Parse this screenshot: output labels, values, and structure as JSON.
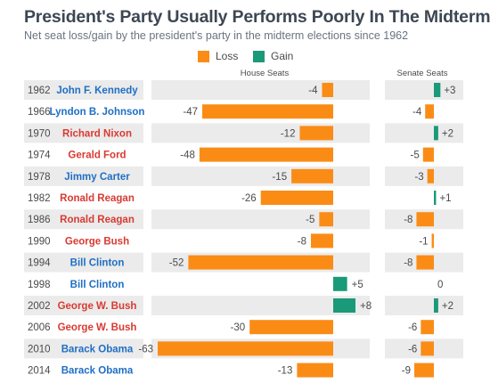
{
  "header": {
    "title": "President's Party Usually Performs Poorly In The Midterms",
    "subtitle": "Net seat loss/gain by the president's party in the midterm elections since 1962"
  },
  "legend": {
    "loss_label": "Loss",
    "gain_label": "Gain"
  },
  "colors": {
    "loss": "#fa8c16",
    "gain": "#1a9a78",
    "democrat": "#1f6fc4",
    "republican": "#d93a32",
    "row_alt": "#ebebeb"
  },
  "chart_data": {
    "type": "bar",
    "house_label": "House Seats",
    "senate_label": "Senate Seats",
    "house_range": [
      -65,
      10
    ],
    "senate_range": [
      -10,
      5
    ],
    "rows": [
      {
        "year": "1962",
        "president": "John F. Kennedy",
        "party": "democrat",
        "house": -4,
        "senate": 3,
        "house_label": "-4",
        "senate_label": "+3"
      },
      {
        "year": "1966",
        "president": "Lyndon B. Johnson",
        "party": "democrat",
        "house": -47,
        "senate": -4,
        "house_label": "-47",
        "senate_label": "-4"
      },
      {
        "year": "1970",
        "president": "Richard Nixon",
        "party": "republican",
        "house": -12,
        "senate": 2,
        "house_label": "-12",
        "senate_label": "+2"
      },
      {
        "year": "1974",
        "president": "Gerald Ford",
        "party": "republican",
        "house": -48,
        "senate": -5,
        "house_label": "-48",
        "senate_label": "-5"
      },
      {
        "year": "1978",
        "president": "Jimmy Carter",
        "party": "democrat",
        "house": -15,
        "senate": -3,
        "house_label": "-15",
        "senate_label": "-3"
      },
      {
        "year": "1982",
        "president": "Ronald Reagan",
        "party": "republican",
        "house": -26,
        "senate": 1,
        "house_label": "-26",
        "senate_label": "+1"
      },
      {
        "year": "1986",
        "president": "Ronald Reagan",
        "party": "republican",
        "house": -5,
        "senate": -8,
        "house_label": "-5",
        "senate_label": "-8"
      },
      {
        "year": "1990",
        "president": "George Bush",
        "party": "republican",
        "house": -8,
        "senate": -1,
        "house_label": "-8",
        "senate_label": "-1"
      },
      {
        "year": "1994",
        "president": "Bill Clinton",
        "party": "democrat",
        "house": -52,
        "senate": -8,
        "house_label": "-52",
        "senate_label": "-8"
      },
      {
        "year": "1998",
        "president": "Bill Clinton",
        "party": "democrat",
        "house": 5,
        "senate": 0,
        "house_label": "+5",
        "senate_label": "0"
      },
      {
        "year": "2002",
        "president": "George W. Bush",
        "party": "republican",
        "house": 8,
        "senate": 2,
        "house_label": "+8",
        "senate_label": "+2"
      },
      {
        "year": "2006",
        "president": "George W. Bush",
        "party": "republican",
        "house": -30,
        "senate": -6,
        "house_label": "-30",
        "senate_label": "-6"
      },
      {
        "year": "2010",
        "president": "Barack Obama",
        "party": "democrat",
        "house": -63,
        "senate": -6,
        "house_label": "-63",
        "senate_label": "-6"
      },
      {
        "year": "2014",
        "president": "Barack Obama",
        "party": "democrat",
        "house": -13,
        "senate": -9,
        "house_label": "-13",
        "senate_label": "-9"
      }
    ]
  }
}
